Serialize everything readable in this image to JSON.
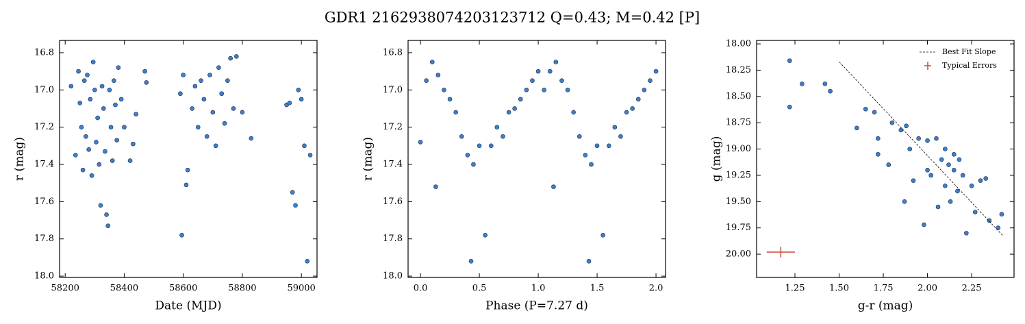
{
  "title": "GDR1 2162938074203123712  Q=0.43; M=0.42 [P]",
  "chart_data": [
    {
      "type": "scatter",
      "xlabel": "Date (MJD)",
      "ylabel": "r (mag)",
      "color": "#3d7fcf",
      "edgecolor": "#1a2a40",
      "xlim": [
        58181,
        59053
      ],
      "ylim": [
        16.734,
        18.007
      ],
      "y_inverted": true,
      "xticks": [
        58200,
        58400,
        58600,
        58800,
        59000
      ],
      "yticks": [
        16.8,
        {
          "value": 17,
          "label": "17.0"
        },
        17.2,
        17.4,
        17.6,
        17.8,
        {
          "value": 18,
          "label": "18.0"
        }
      ],
      "x": [
        58220,
        58235,
        58245,
        58250,
        58255,
        58260,
        58265,
        58270,
        58275,
        58280,
        58285,
        58290,
        58295,
        58300,
        58305,
        58310,
        58315,
        58320,
        58325,
        58330,
        58335,
        58340,
        58345,
        58350,
        58355,
        58360,
        58365,
        58370,
        58375,
        58380,
        58390,
        58400,
        58420,
        58430,
        58440,
        58470,
        58475,
        58590,
        58595,
        58600,
        58610,
        58615,
        58630,
        58640,
        58650,
        58660,
        58670,
        58680,
        58690,
        58700,
        58710,
        58720,
        58730,
        58740,
        58750,
        58760,
        58770,
        58780,
        58800,
        58830,
        58950,
        58960,
        58970,
        58980,
        58990,
        59000,
        59010,
        59020,
        59030
      ],
      "y": [
        16.98,
        17.35,
        16.9,
        17.07,
        17.2,
        17.43,
        16.95,
        17.25,
        16.92,
        17.32,
        17.05,
        17.46,
        16.85,
        17.0,
        17.28,
        17.15,
        17.4,
        17.62,
        16.98,
        17.1,
        17.33,
        17.67,
        17.73,
        17.0,
        17.2,
        17.38,
        16.95,
        17.08,
        17.27,
        16.88,
        17.05,
        17.2,
        17.38,
        17.29,
        17.13,
        16.9,
        16.96,
        17.02,
        17.78,
        16.92,
        17.51,
        17.43,
        17.1,
        16.98,
        17.2,
        16.95,
        17.05,
        17.25,
        16.92,
        17.12,
        17.3,
        16.88,
        17.02,
        17.18,
        16.95,
        16.83,
        17.1,
        16.82,
        17.12,
        17.26,
        17.08,
        17.07,
        17.55,
        17.62,
        17.0,
        17.05,
        17.3,
        17.92,
        17.35
      ]
    },
    {
      "type": "scatter",
      "xlabel": "Phase (P=7.27 d)",
      "ylabel": "r (mag)",
      "color": "#3d7fcf",
      "edgecolor": "#1a2a40",
      "xlim": [
        -0.105,
        2.081
      ],
      "ylim": [
        16.734,
        18.007
      ],
      "y_inverted": true,
      "xticks": [
        {
          "value": 0,
          "label": "0.0"
        },
        0.5,
        {
          "value": 1,
          "label": "1.0"
        },
        1.5,
        {
          "value": 2,
          "label": "2.0"
        }
      ],
      "yticks": [
        16.8,
        {
          "value": 17,
          "label": "17.0"
        },
        17.2,
        17.4,
        17.6,
        17.8,
        {
          "value": 18,
          "label": "18.0"
        }
      ],
      "x": [
        0.0,
        0.05,
        0.1,
        0.13,
        0.15,
        0.2,
        0.25,
        0.3,
        0.35,
        0.4,
        0.43,
        0.45,
        0.5,
        0.55,
        0.6,
        0.65,
        0.7,
        0.75,
        0.8,
        0.85,
        0.9,
        0.95,
        1.0,
        1.05,
        1.1,
        1.13,
        1.15,
        1.2,
        1.25,
        1.3,
        1.35,
        1.4,
        1.43,
        1.45,
        1.5,
        1.55,
        1.6,
        1.65,
        1.7,
        1.75,
        1.8,
        1.85,
        1.9,
        1.95,
        2.0
      ],
      "y": [
        17.28,
        16.95,
        16.85,
        17.52,
        16.92,
        17.0,
        17.05,
        17.12,
        17.25,
        17.35,
        17.92,
        17.4,
        17.3,
        17.78,
        17.3,
        17.2,
        17.25,
        17.12,
        17.1,
        17.05,
        17.0,
        16.95,
        16.9,
        17.0,
        16.9,
        17.52,
        16.85,
        16.95,
        17.0,
        17.12,
        17.25,
        17.35,
        17.92,
        17.4,
        17.3,
        17.78,
        17.3,
        17.2,
        17.25,
        17.12,
        17.1,
        17.05,
        17.0,
        16.95,
        16.9
      ]
    },
    {
      "type": "scatter",
      "xlabel": "g-r (mag)",
      "ylabel": "g (mag)",
      "color": "#3d7fcf",
      "edgecolor": "#1a2a40",
      "xlim": [
        1.033,
        2.49
      ],
      "ylim": [
        17.967,
        20.221
      ],
      "y_inverted": true,
      "xticks": [
        1.25,
        {
          "value": 1.5,
          "label": "1.50"
        },
        1.75,
        {
          "value": 2,
          "label": "2.00"
        },
        2.25
      ],
      "yticks": [
        {
          "value": 18,
          "label": "18.00"
        },
        18.25,
        {
          "value": 18.5,
          "label": "18.50"
        },
        18.75,
        {
          "value": 19,
          "label": "19.00"
        },
        19.25,
        {
          "value": 19.5,
          "label": "19.50"
        },
        19.75,
        {
          "value": 20,
          "label": "20.00"
        }
      ],
      "x": [
        1.22,
        1.22,
        1.29,
        1.42,
        1.45,
        1.6,
        1.65,
        1.7,
        1.72,
        1.72,
        1.78,
        1.8,
        1.85,
        1.87,
        1.88,
        1.9,
        1.92,
        1.95,
        1.98,
        2.0,
        2.0,
        2.02,
        2.05,
        2.06,
        2.08,
        2.1,
        2.1,
        2.12,
        2.13,
        2.15,
        2.15,
        2.17,
        2.18,
        2.2,
        2.22,
        2.25,
        2.27,
        2.3,
        2.33,
        2.35,
        2.4,
        2.42
      ],
      "y": [
        18.16,
        18.6,
        18.38,
        18.38,
        18.45,
        18.8,
        18.62,
        18.65,
        18.9,
        19.05,
        19.15,
        18.75,
        18.82,
        19.5,
        18.78,
        19.0,
        19.3,
        18.9,
        19.72,
        18.92,
        19.2,
        19.25,
        18.9,
        19.55,
        19.1,
        19.0,
        19.35,
        19.15,
        19.5,
        19.2,
        19.05,
        19.4,
        19.1,
        19.25,
        19.8,
        19.35,
        19.6,
        19.3,
        19.28,
        19.68,
        19.75,
        19.62
      ],
      "fit": {
        "name": "Best Fit Slope",
        "color": "#000000",
        "x": [
          1.5,
          2.43
        ],
        "y": [
          18.17,
          19.83
        ]
      },
      "errors": {
        "name": "Typical Errors",
        "color": "#d0463c",
        "x": 1.17,
        "y": 19.98,
        "xerr": 0.08,
        "yerr": 0.05
      },
      "legend": "upper right"
    }
  ]
}
